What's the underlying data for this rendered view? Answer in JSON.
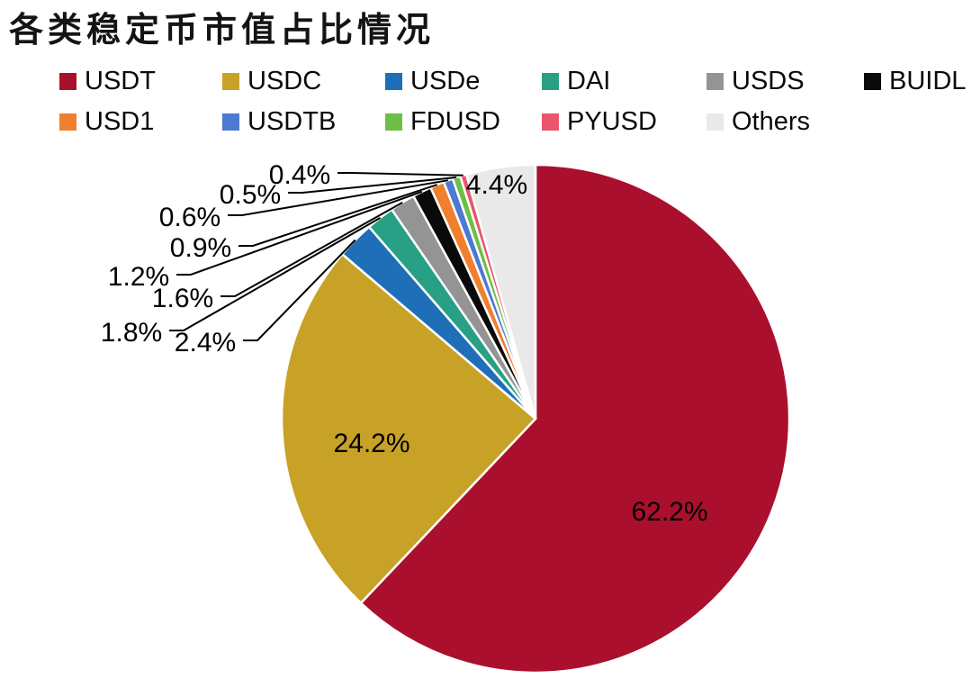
{
  "title": "各类稳定币市值占比情况",
  "legend": {
    "rows": [
      [
        "USDT",
        "USDC",
        "USDe",
        "DAI",
        "USDS",
        "BUIDL"
      ],
      [
        "USD1",
        "USDTB",
        "FDUSD",
        "PYUSD",
        "Others"
      ]
    ]
  },
  "chart_data": {
    "type": "pie",
    "title": "各类稳定币市值占比情况",
    "start_angle_deg": 0,
    "direction": "clockwise",
    "legend_position": "top",
    "series": [
      {
        "name": "USDT",
        "value": 62.2,
        "label": "62.2%",
        "color": "#AA102D"
      },
      {
        "name": "USDC",
        "value": 24.2,
        "label": "24.2%",
        "color": "#C7A227"
      },
      {
        "name": "USDe",
        "value": 2.4,
        "label": "2.4%",
        "color": "#1E6FB8"
      },
      {
        "name": "DAI",
        "value": 1.8,
        "label": "1.8%",
        "color": "#28A085"
      },
      {
        "name": "USDS",
        "value": 1.6,
        "label": "1.6%",
        "color": "#949494"
      },
      {
        "name": "BUIDL",
        "value": 1.2,
        "label": "1.2%",
        "color": "#0A0A0A"
      },
      {
        "name": "USD1",
        "value": 0.9,
        "label": "0.9%",
        "color": "#F07F2E"
      },
      {
        "name": "USDTB",
        "value": 0.6,
        "label": "0.6%",
        "color": "#4D79D2"
      },
      {
        "name": "FDUSD",
        "value": 0.5,
        "label": "0.5%",
        "color": "#6DBE45"
      },
      {
        "name": "PYUSD",
        "value": 0.4,
        "label": "0.4%",
        "color": "#E9556B"
      },
      {
        "name": "Others",
        "value": 4.4,
        "label": "4.4%",
        "color": "#E9E9E9"
      }
    ],
    "line_color": "#000000",
    "slice_border_color": "#FFFFFF"
  }
}
